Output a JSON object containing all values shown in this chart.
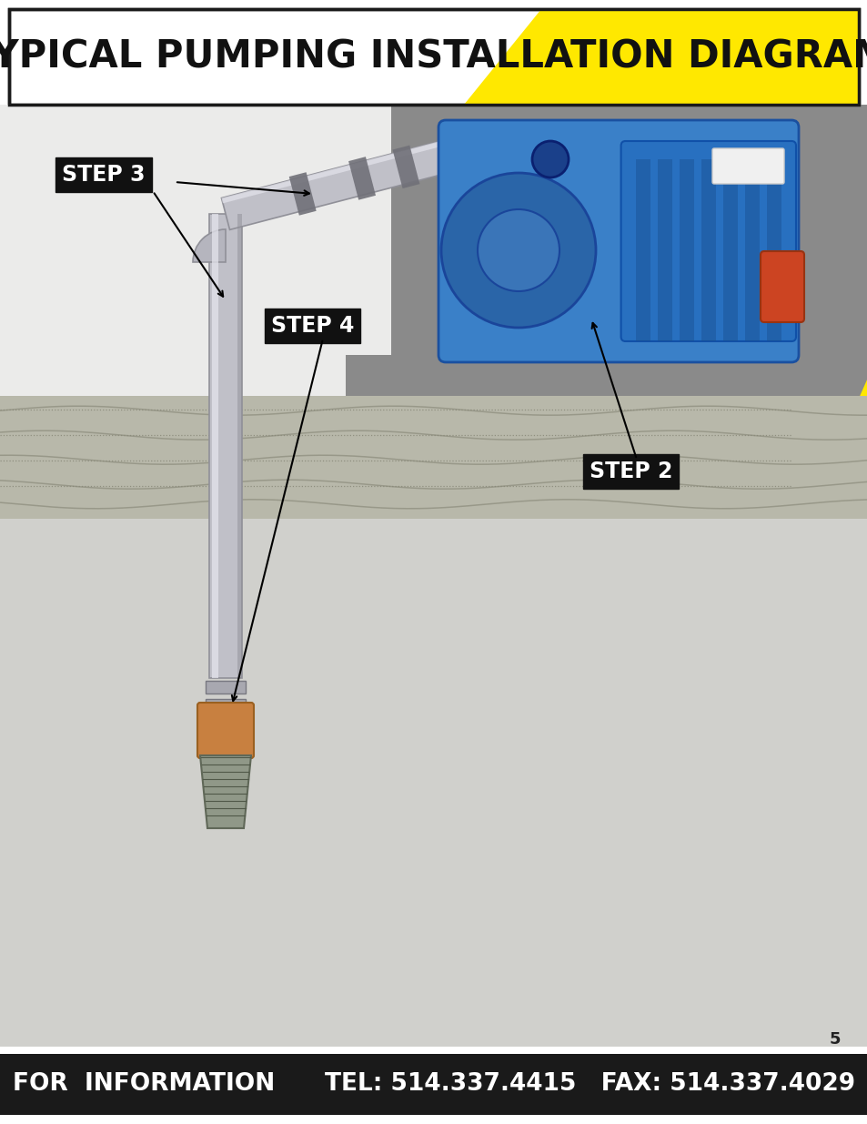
{
  "title": "TYPICAL PUMPING INSTALLATION DIAGRAM",
  "title_fontsize": 30,
  "bg_color": "#ffffff",
  "header_yellow_color": "#FFE800",
  "header_border_color": "#1a1a1a",
  "footer_bg_color": "#1a1a1a",
  "footer_text_color": "#ffffff",
  "footer_text": "FOR  INFORMATION      TEL: 514.337.4415   FAX: 514.337.4029",
  "footer_fontsize": 19,
  "page_number": "5",
  "page_number_fontsize": 13,
  "step2_label": "STEP 2",
  "step3_label": "STEP 3",
  "step4_label": "STEP 4",
  "step_fontsize": 17,
  "step_bg_color": "#111111",
  "step_text_color": "#ffffff",
  "yellow_color": "#FFE800",
  "gray_area_color": "#8a8a8a",
  "ground_band_color": "#b8b8aa",
  "underground_color": "#d0d0cc",
  "diagram_bg": "#ebebea",
  "pipe_color": "#c0c0c8",
  "pipe_edge_color": "#909098",
  "pipe_highlight": "#e4e4ec"
}
